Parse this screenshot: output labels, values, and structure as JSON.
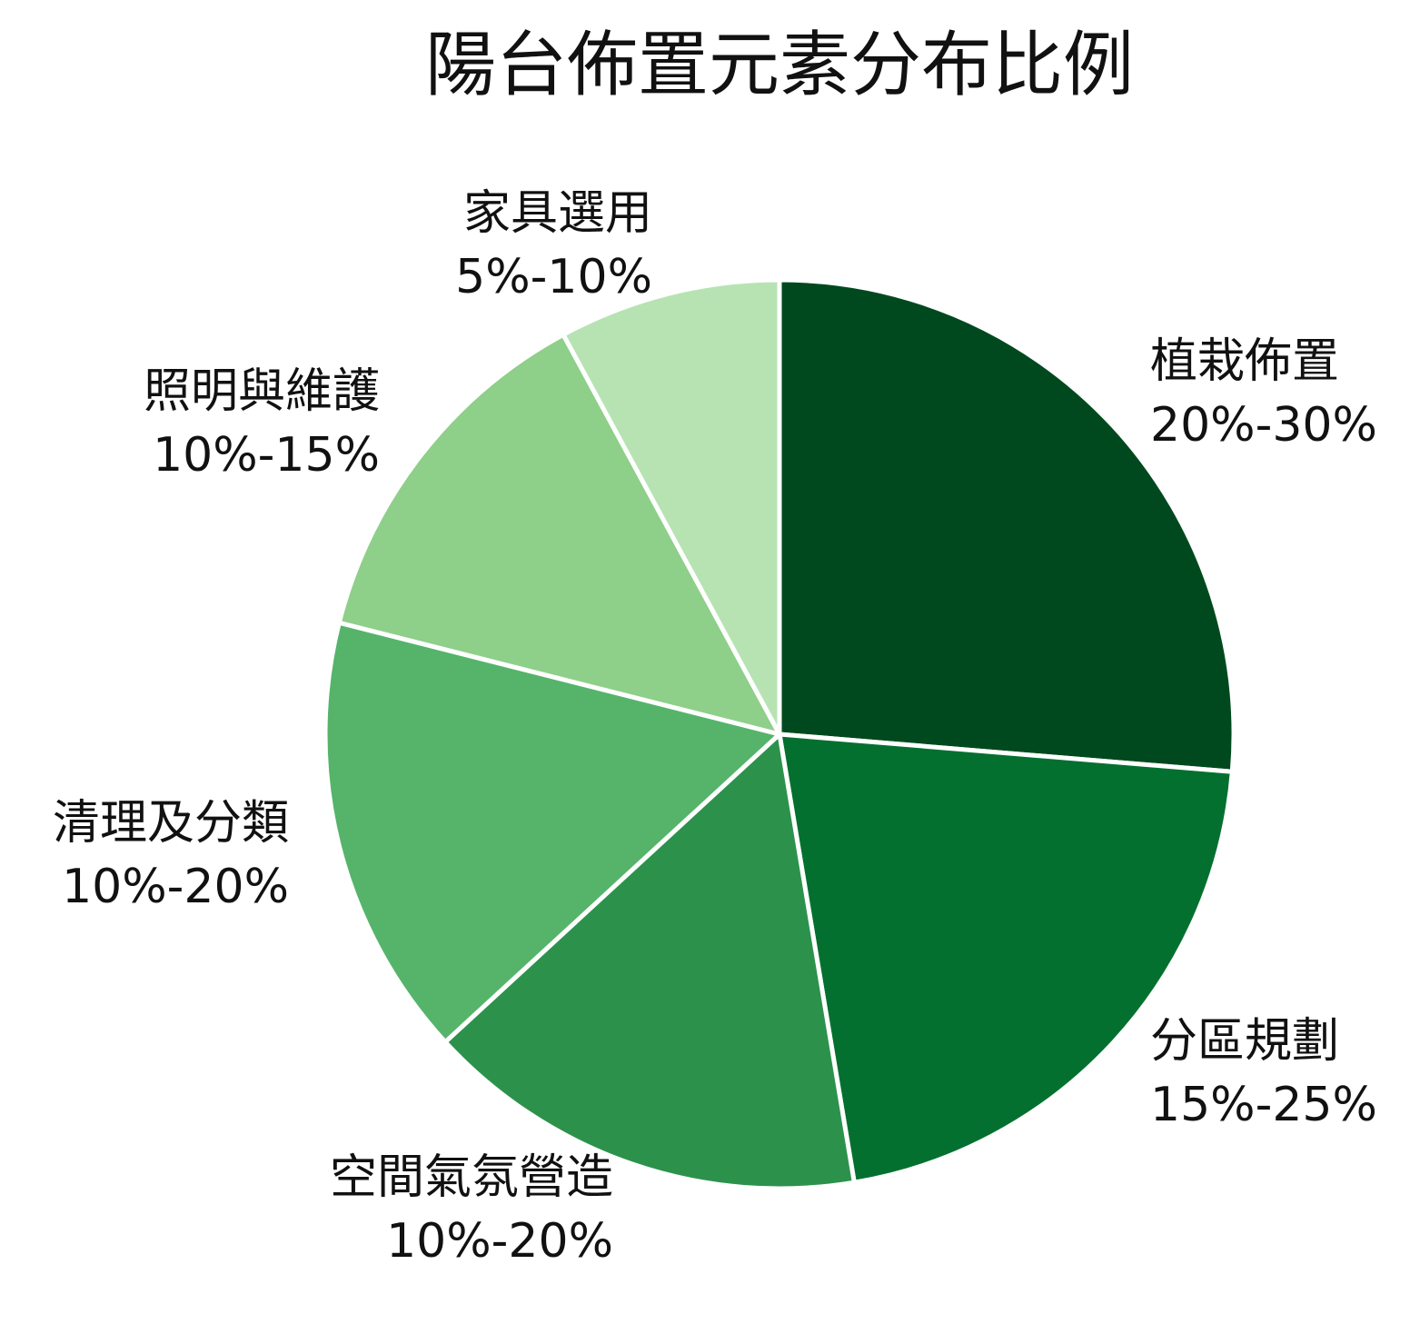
{
  "chart_data": {
    "type": "pie",
    "title": "陽台佈置元素分布比例",
    "start_angle_deg": 90,
    "direction": "clockwise",
    "slices": [
      {
        "label": "植栽佈置",
        "value_text": "20%-30%",
        "value": 25,
        "color": "#00491E"
      },
      {
        "label": "分區規劃",
        "value_text": "15%-25%",
        "value": 20,
        "color": "#04702F"
      },
      {
        "label": "空間氣氛營造",
        "value_text": "10%-20%",
        "value": 15,
        "color": "#2C924B"
      },
      {
        "label": "清理及分類",
        "value_text": "10%-20%",
        "value": 15,
        "color": "#55B46A"
      },
      {
        "label": "照明與維護",
        "value_text": "10%-15%",
        "value": 12.5,
        "color": "#8ECF89"
      },
      {
        "label": "家具選用",
        "value_text": "5%-10%",
        "value": 7.5,
        "color": "#B7E3B3"
      }
    ]
  }
}
